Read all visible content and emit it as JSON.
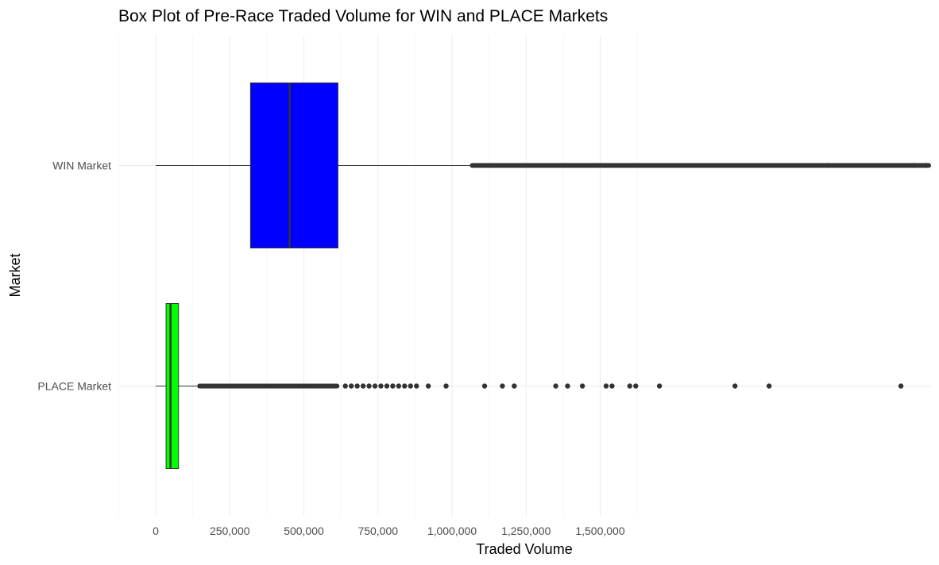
{
  "chart_data": {
    "type": "boxplot",
    "title": "Box Plot of Pre-Race Traded Volume for WIN and PLACE Markets",
    "xlabel": "Traded Volume",
    "ylabel": "Market",
    "orientation": "horizontal",
    "xlim": [
      -130000,
      2680000
    ],
    "x_ticks": [
      0,
      250000,
      500000,
      750000,
      1000000,
      1250000,
      1500000
    ],
    "x_tick_labels": [
      "0",
      "250,000",
      "500,000",
      "750,000",
      "1,000,000",
      "1,250,000",
      "1,500,000"
    ],
    "grid": true,
    "categories": [
      "WIN Market",
      "PLACE Market"
    ],
    "series": [
      {
        "category": "WIN Market",
        "color": "#0000ff",
        "min": 0,
        "q1": 320000,
        "median": 452000,
        "q3": 615000,
        "whisker_high": 1060000,
        "outlier_dense_ranges": [
          [
            1060000,
            2680000
          ]
        ],
        "outliers": [
          2270000,
          2560000,
          2600000,
          2630000,
          2660000
        ]
      },
      {
        "category": "PLACE Market",
        "color": "#00ff00",
        "min": 0,
        "q1": 35000,
        "median": 50000,
        "q3": 77000,
        "whisker_high": 140000,
        "outlier_dense_ranges": [
          [
            140000,
            620000
          ]
        ],
        "outliers": [
          640000,
          660000,
          680000,
          700000,
          720000,
          740000,
          760000,
          780000,
          800000,
          820000,
          840000,
          860000,
          880000,
          920000,
          980000,
          1110000,
          1170000,
          1210000,
          1350000,
          1390000,
          1440000,
          1520000,
          1540000,
          1600000,
          1620000,
          1700000,
          1955000,
          2070000,
          2515000
        ]
      }
    ]
  }
}
